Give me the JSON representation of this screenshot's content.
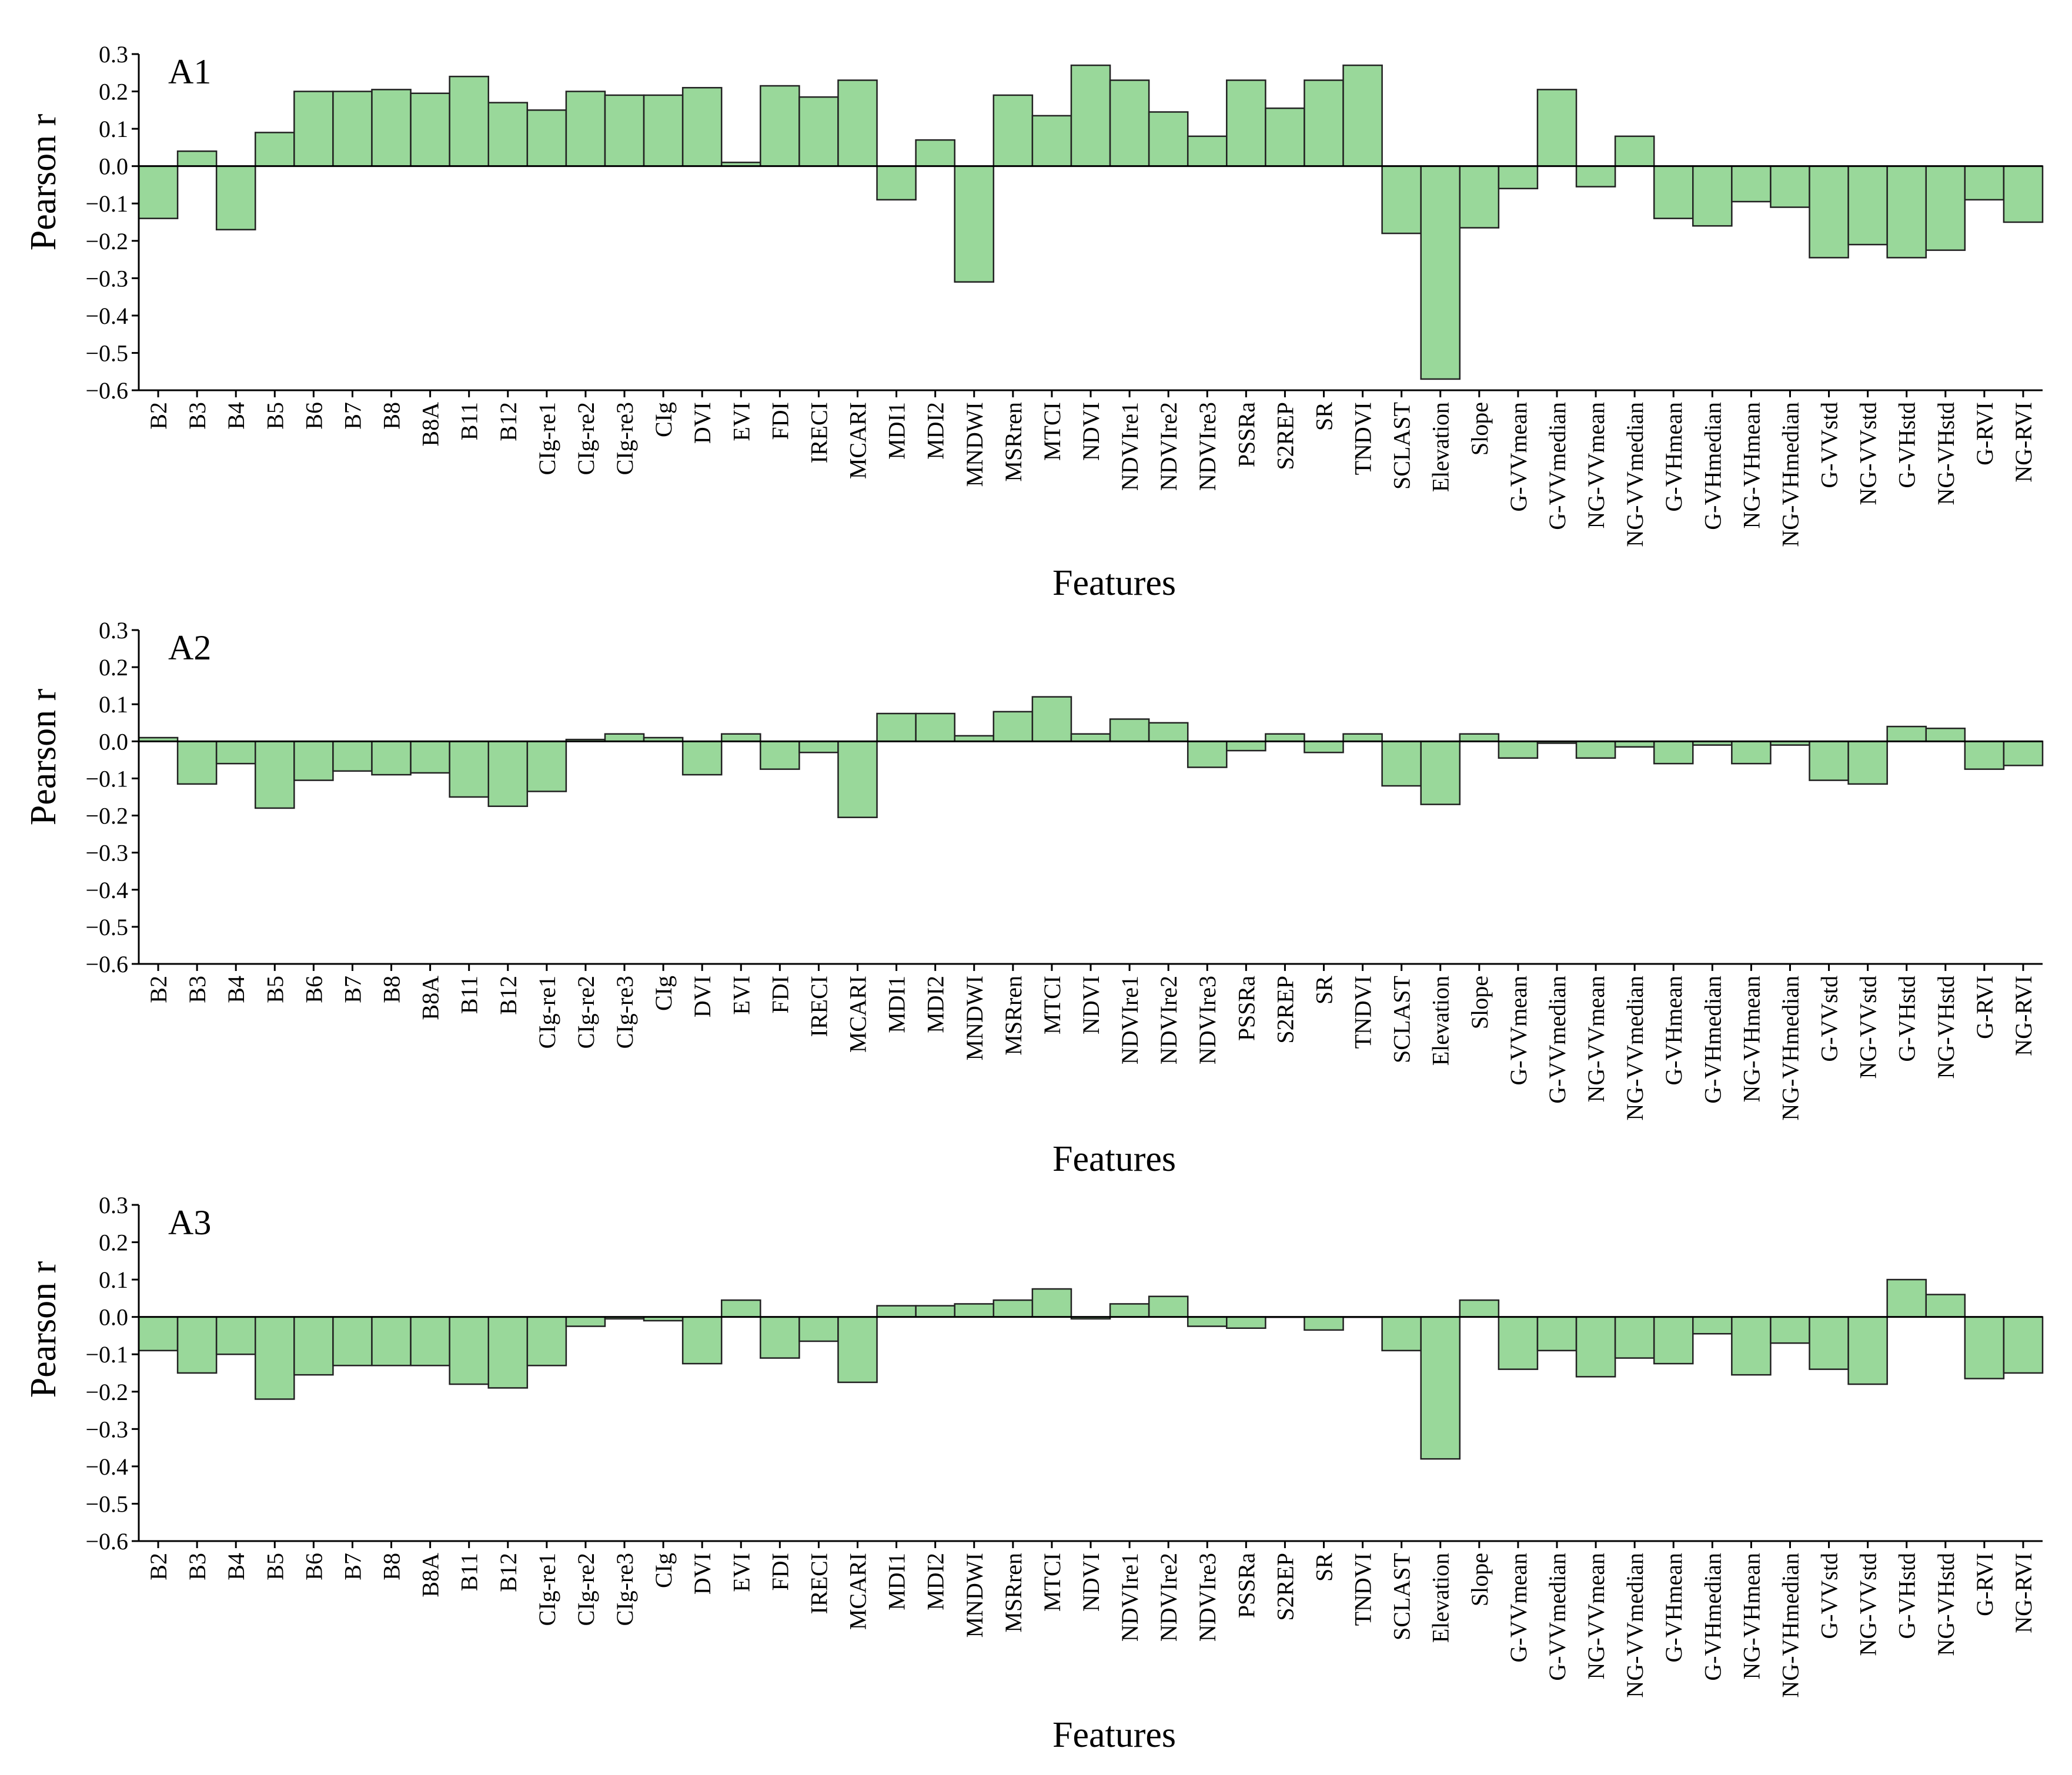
{
  "colors": {
    "bar_fill": "#99d89a",
    "bar_stroke": "#222222",
    "axis": "#000000",
    "background": "#ffffff"
  },
  "chart_data": [
    {
      "type": "bar",
      "label": "A1",
      "xlabel": "Features",
      "ylabel": "Pearson r",
      "ylim": [
        -0.6,
        0.3
      ],
      "yticks": [
        "0.3",
        "0.2",
        "0.1",
        "0.0",
        "−0.1",
        "−0.2",
        "−0.3",
        "−0.4",
        "−0.5",
        "−0.6"
      ],
      "grid": false,
      "categories": [
        "B2",
        "B3",
        "B4",
        "B5",
        "B6",
        "B7",
        "B8",
        "B8A",
        "B11",
        "B12",
        "CIg-re1",
        "CIg-re2",
        "CIg-re3",
        "CIg",
        "DVI",
        "EVI",
        "FDI",
        "IRECI",
        "MCARI",
        "MDI1",
        "MDI2",
        "MNDWI",
        "MSRren",
        "MTCI",
        "NDVI",
        "NDVIre1",
        "NDVIre2",
        "NDVIre3",
        "PSSRa",
        "S2REP",
        "SR",
        "TNDVI",
        "SCLAST",
        "Elevation",
        "Slope",
        "G-VVmean",
        "G-VVmedian",
        "NG-VVmean",
        "NG-VVmedian",
        "G-VHmean",
        "G-VHmedian",
        "NG-VHmean",
        "NG-VHmedian",
        "G-VVstd",
        "NG-VVstd",
        "G-VHstd",
        "NG-VHstd",
        "G-RVI",
        "NG-RVI"
      ],
      "values": [
        -0.14,
        0.04,
        -0.17,
        0.09,
        0.2,
        0.2,
        0.205,
        0.195,
        0.24,
        0.17,
        0.15,
        0.2,
        0.19,
        0.19,
        0.21,
        0.01,
        0.215,
        0.185,
        0.23,
        -0.09,
        0.07,
        -0.31,
        0.19,
        0.135,
        0.27,
        0.23,
        0.145,
        0.08,
        0.23,
        0.155,
        0.23,
        0.27,
        -0.18,
        -0.57,
        -0.165,
        -0.06,
        0.205,
        -0.055,
        0.08,
        -0.14,
        -0.16,
        -0.095,
        -0.11,
        -0.245,
        -0.21,
        -0.245,
        -0.225,
        -0.09,
        -0.15
      ]
    },
    {
      "type": "bar",
      "label": "A2",
      "xlabel": "Features",
      "ylabel": "Pearson r",
      "ylim": [
        -0.6,
        0.3
      ],
      "yticks": [
        "0.3",
        "0.2",
        "0.1",
        "0.0",
        "−0.1",
        "−0.2",
        "−0.3",
        "−0.4",
        "−0.5",
        "−0.6"
      ],
      "grid": false,
      "categories": [
        "B2",
        "B3",
        "B4",
        "B5",
        "B6",
        "B7",
        "B8",
        "B8A",
        "B11",
        "B12",
        "CIg-re1",
        "CIg-re2",
        "CIg-re3",
        "CIg",
        "DVI",
        "EVI",
        "FDI",
        "IRECI",
        "MCARI",
        "MDI1",
        "MDI2",
        "MNDWI",
        "MSRren",
        "MTCI",
        "NDVI",
        "NDVIre1",
        "NDVIre2",
        "NDVIre3",
        "PSSRa",
        "S2REP",
        "SR",
        "TNDVI",
        "SCLAST",
        "Elevation",
        "Slope",
        "G-VVmean",
        "G-VVmedian",
        "NG-VVmean",
        "NG-VVmedian",
        "G-VHmean",
        "G-VHmedian",
        "NG-VHmean",
        "NG-VHmedian",
        "G-VVstd",
        "NG-VVstd",
        "G-VHstd",
        "NG-VHstd",
        "G-RVI",
        "NG-RVI"
      ],
      "values": [
        0.01,
        -0.115,
        -0.06,
        -0.18,
        -0.105,
        -0.08,
        -0.09,
        -0.085,
        -0.15,
        -0.175,
        -0.135,
        0.005,
        0.02,
        0.01,
        -0.09,
        0.02,
        -0.075,
        -0.03,
        -0.205,
        0.075,
        0.075,
        0.015,
        0.08,
        0.12,
        0.02,
        0.06,
        0.05,
        -0.07,
        -0.025,
        0.02,
        -0.03,
        0.02,
        -0.12,
        -0.17,
        0.02,
        -0.045,
        -0.005,
        -0.045,
        -0.015,
        -0.06,
        -0.01,
        -0.06,
        -0.01,
        -0.105,
        -0.115,
        0.04,
        0.035,
        -0.075,
        -0.065
      ]
    },
    {
      "type": "bar",
      "label": "A3",
      "xlabel": "Features",
      "ylabel": "Pearson r",
      "ylim": [
        -0.6,
        0.3
      ],
      "yticks": [
        "0.3",
        "0.2",
        "0.1",
        "0.0",
        "−0.1",
        "−0.2",
        "−0.3",
        "−0.4",
        "−0.5",
        "−0.6"
      ],
      "grid": false,
      "categories": [
        "B2",
        "B3",
        "B4",
        "B5",
        "B6",
        "B7",
        "B8",
        "B8A",
        "B11",
        "B12",
        "CIg-re1",
        "CIg-re2",
        "CIg-re3",
        "CIg",
        "DVI",
        "EVI",
        "FDI",
        "IRECI",
        "MCARI",
        "MDI1",
        "MDI2",
        "MNDWI",
        "MSRren",
        "MTCI",
        "NDVI",
        "NDVIre1",
        "NDVIre2",
        "NDVIre3",
        "PSSRa",
        "S2REP",
        "SR",
        "TNDVI",
        "SCLAST",
        "Elevation",
        "Slope",
        "G-VVmean",
        "G-VVmedian",
        "NG-VVmean",
        "NG-VVmedian",
        "G-VHmean",
        "G-VHmedian",
        "NG-VHmean",
        "NG-VHmedian",
        "G-VVstd",
        "NG-VVstd",
        "G-VHstd",
        "NG-VHstd",
        "G-RVI",
        "NG-RVI"
      ],
      "values": [
        -0.09,
        -0.15,
        -0.1,
        -0.22,
        -0.155,
        -0.13,
        -0.13,
        -0.13,
        -0.18,
        -0.19,
        -0.13,
        -0.025,
        -0.005,
        -0.01,
        -0.125,
        0.045,
        -0.11,
        -0.065,
        -0.175,
        0.03,
        0.03,
        0.035,
        0.045,
        0.075,
        -0.005,
        0.035,
        0.055,
        -0.025,
        -0.03,
        0.0,
        -0.035,
        0.0,
        -0.09,
        -0.38,
        0.045,
        -0.14,
        -0.09,
        -0.16,
        -0.11,
        -0.125,
        -0.045,
        -0.155,
        -0.07,
        -0.14,
        -0.18,
        0.1,
        0.06,
        -0.165,
        -0.15
      ]
    }
  ]
}
